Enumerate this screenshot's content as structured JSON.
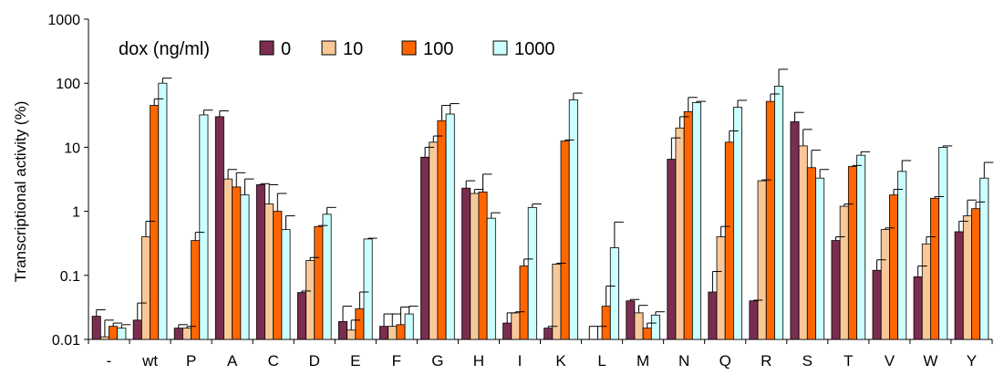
{
  "chart_data": {
    "type": "bar",
    "title": "",
    "xlabel": "",
    "ylabel": "Transcriptional activity (%)",
    "yscale": "log",
    "ylim": [
      0.01,
      1000
    ],
    "yticks": [
      0.01,
      0.1,
      1,
      10,
      100,
      1000
    ],
    "ytick_labels": [
      "0.01",
      "0.1",
      "1",
      "10",
      "100",
      "1000"
    ],
    "legend": {
      "title": "dox (ng/ml)",
      "placement": "top-left",
      "orientation": "horizontal"
    },
    "grid": false,
    "categories": [
      "-",
      "wt",
      "P",
      "A",
      "C",
      "D",
      "E",
      "F",
      "G",
      "H",
      "I",
      "K",
      "L",
      "M",
      "N",
      "Q",
      "R",
      "S",
      "T",
      "V",
      "W",
      "Y"
    ],
    "series": [
      {
        "name": "0",
        "color": "#7b2d50",
        "values": [
          0.023,
          0.02,
          0.015,
          30,
          2.6,
          0.054,
          0.019,
          0.016,
          7,
          2.3,
          0.018,
          0.015,
          0.008,
          0.04,
          6.5,
          0.055,
          0.04,
          25,
          0.35,
          0.12,
          0.095,
          0.48
        ],
        "errors": [
          0.029,
          0.037,
          0.017,
          37,
          2.7,
          0.057,
          0.033,
          0.025,
          10,
          3,
          0.026,
          0.016,
          0.016,
          0.042,
          14,
          0.115,
          0.041,
          35,
          0.4,
          0.175,
          0.14,
          0.7
        ]
      },
      {
        "name": "10",
        "color": "#f8c898",
        "values": [
          0.011,
          0.4,
          0.015,
          3.2,
          1.3,
          0.17,
          0.014,
          0.016,
          12,
          1.9,
          0.026,
          0.15,
          0.009,
          0.026,
          20,
          0.4,
          3,
          10.5,
          1.2,
          0.52,
          0.31,
          0.85
        ],
        "errors": [
          0.02,
          0.7,
          0.016,
          4.5,
          2.6,
          0.19,
          0.02,
          0.025,
          15,
          2.2,
          0.027,
          0.155,
          0.016,
          0.034,
          30,
          0.58,
          3.1,
          19,
          1.3,
          0.55,
          0.4,
          1.5
        ]
      },
      {
        "name": "100",
        "color": "#ff6600",
        "values": [
          0.016,
          45,
          0.35,
          2.4,
          1,
          0.58,
          0.03,
          0.017,
          26,
          2,
          0.14,
          12.5,
          0.033,
          0.015,
          36,
          12,
          52,
          4.8,
          5,
          1.8,
          1.6,
          1.1
        ],
        "errors": [
          0.018,
          57,
          0.47,
          4,
          1.9,
          0.6,
          0.055,
          0.032,
          45,
          3.8,
          0.18,
          13,
          0.068,
          0.018,
          60,
          18,
          68,
          9,
          5.2,
          2.2,
          1.7,
          1.4
        ]
      },
      {
        "name": "1000",
        "color": "#ccffff",
        "values": [
          0.015,
          100,
          32,
          1.8,
          0.52,
          0.9,
          0.37,
          0.025,
          33,
          0.78,
          1.15,
          55,
          0.27,
          0.024,
          50,
          42,
          90,
          3.3,
          7.5,
          4.2,
          10,
          3.3
        ],
        "errors": [
          0.017,
          120,
          38,
          3.2,
          0.85,
          1.15,
          0.38,
          0.033,
          48,
          0.95,
          1.3,
          70,
          0.68,
          0.027,
          52,
          54,
          165,
          4.5,
          8.5,
          6.2,
          10.5,
          5.8
        ]
      }
    ]
  }
}
